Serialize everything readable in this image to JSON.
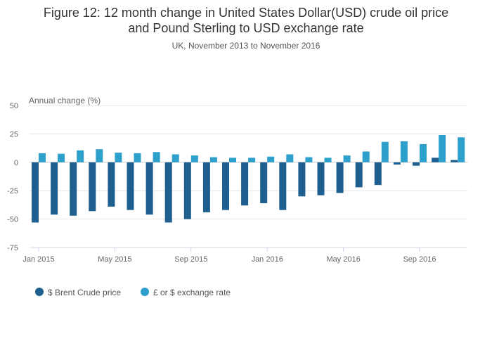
{
  "chart_data": {
    "type": "bar",
    "title_line1": "Figure 12: 12 month change in United States Dollar(USD) crude oil price",
    "title_line2": "and Pound Sterling to USD exchange rate",
    "subtitle": "UK, November 2013 to November 2016",
    "ylabel": "Annual change (%)",
    "ylim": [
      -75,
      50
    ],
    "yticks": [
      50,
      25,
      0,
      -25,
      -50,
      -75
    ],
    "xticks": [
      {
        "label": "Jan 2015",
        "index": 0
      },
      {
        "label": "May 2015",
        "index": 4
      },
      {
        "label": "Sep 2015",
        "index": 8
      },
      {
        "label": "Jan 2016",
        "index": 12
      },
      {
        "label": "May 2016",
        "index": 16
      },
      {
        "label": "Sep 2016",
        "index": 20
      }
    ],
    "categories": [
      "Jan 2015",
      "Feb 2015",
      "Mar 2015",
      "Apr 2015",
      "May 2015",
      "Jun 2015",
      "Jul 2015",
      "Aug 2015",
      "Sep 2015",
      "Oct 2015",
      "Nov 2015",
      "Dec 2015",
      "Jan 2016",
      "Feb 2016",
      "Mar 2016",
      "Apr 2016",
      "May 2016",
      "Jun 2016",
      "Jul 2016",
      "Aug 2016",
      "Sep 2016",
      "Oct 2016",
      "Nov 2016"
    ],
    "series": [
      {
        "name": "$ Brent Crude price",
        "color": "#1f5f8f",
        "values": [
          -53,
          -46,
          -47,
          -43,
          -39,
          -42,
          -46,
          -53,
          -50,
          -44,
          -42,
          -38,
          -36,
          -42,
          -30,
          -29,
          -27,
          -22,
          -20,
          -2,
          -3,
          4,
          2
        ]
      },
      {
        "name": "£ or $ exchange rate",
        "color": "#2ea0cc",
        "values": [
          8,
          7.5,
          10.5,
          11.5,
          8.5,
          8,
          9,
          7,
          6,
          4.5,
          4,
          4,
          5,
          7,
          4.5,
          4,
          6,
          9.5,
          18,
          18.5,
          16,
          24,
          22
        ]
      }
    ],
    "grid": true,
    "legend": "bottom-left"
  }
}
